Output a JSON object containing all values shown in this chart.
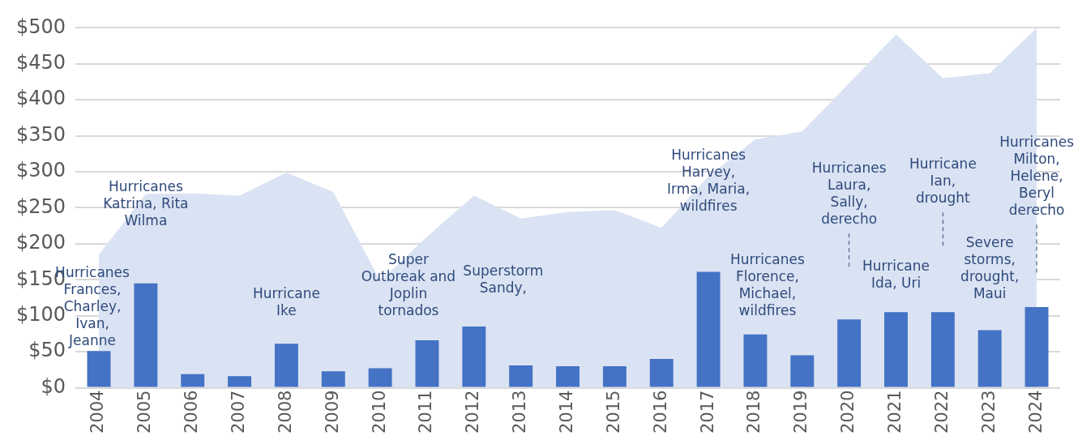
{
  "chart_data": {
    "type": "bar",
    "categories": [
      "2004",
      "2005",
      "2006",
      "2007",
      "2008",
      "2009",
      "2010",
      "2011",
      "2012",
      "2013",
      "2014",
      "2015",
      "2016",
      "2017",
      "2018",
      "2019",
      "2020",
      "2021",
      "2022",
      "2023",
      "2024"
    ],
    "series": [
      {
        "type": "area",
        "color": "#dae3f3",
        "values": [
          185,
          269,
          270,
          267,
          299,
          272,
          148,
          210,
          267,
          235,
          244,
          247,
          222,
          294,
          345,
          356,
          423,
          491,
          430,
          437,
          500
        ]
      },
      {
        "color": "#4472c4",
        "values": [
          51,
          145,
          19,
          16,
          61,
          23,
          27,
          66,
          85,
          31,
          30,
          30,
          40,
          161,
          74,
          45,
          95,
          105,
          105,
          80,
          112
        ]
      }
    ],
    "ylim": [
      0,
      500
    ],
    "yticks": [
      {
        "value": 0,
        "label": "$0"
      },
      {
        "value": 50,
        "label": "$50"
      },
      {
        "value": 100,
        "label": "$100"
      },
      {
        "value": 150,
        "label": "$150"
      },
      {
        "value": 200,
        "label": "$200"
      },
      {
        "value": 250,
        "label": "$250"
      },
      {
        "value": 300,
        "label": "$300"
      },
      {
        "value": 350,
        "label": "$350"
      },
      {
        "value": 400,
        "label": "$400"
      },
      {
        "value": 450,
        "label": "$450"
      },
      {
        "value": 500,
        "label": "$500"
      }
    ],
    "grid": "y",
    "legend": false,
    "annotations": [
      {
        "text": "Hurricanes\nFrances,\nCharley,\nIvan,\nJeanne",
        "x": "2004",
        "y": 51
      },
      "Hurricanes\nKatrina, Rita\nWilma",
      {
        "text": "Hurricane\nIke",
        "x": "2008",
        "y": 61
      },
      {
        "text": "Super\nOutbreak and\nJoplin\ntornados",
        "x": "2011",
        "y": 66
      },
      {
        "text": "Superstorm\nSandy,",
        "x": "2012",
        "y": 85
      },
      "Hurricanes\nHarvey,\nIrma, Maria,\nwildfires",
      {
        "text": "Hurricanes\nFlorence,\nMichael,\nwildfires",
        "x": "2018",
        "y": 74
      },
      "Hurricanes\nLaura,\nSally,\nderecho",
      {
        "text": "Hurricane\nIda, Uri",
        "x": "2021",
        "y": 105
      },
      "Hurricane\nIan,\ndrought",
      {
        "text": "Severe\nstorms,\ndrought,\nMaui",
        "x": "2023",
        "y": 80
      },
      {
        "text": "Hurricanes\nMilton,\nHelene,\nBeryl\nderecho",
        "x": "2024",
        "y": 160
      }
    ]
  }
}
